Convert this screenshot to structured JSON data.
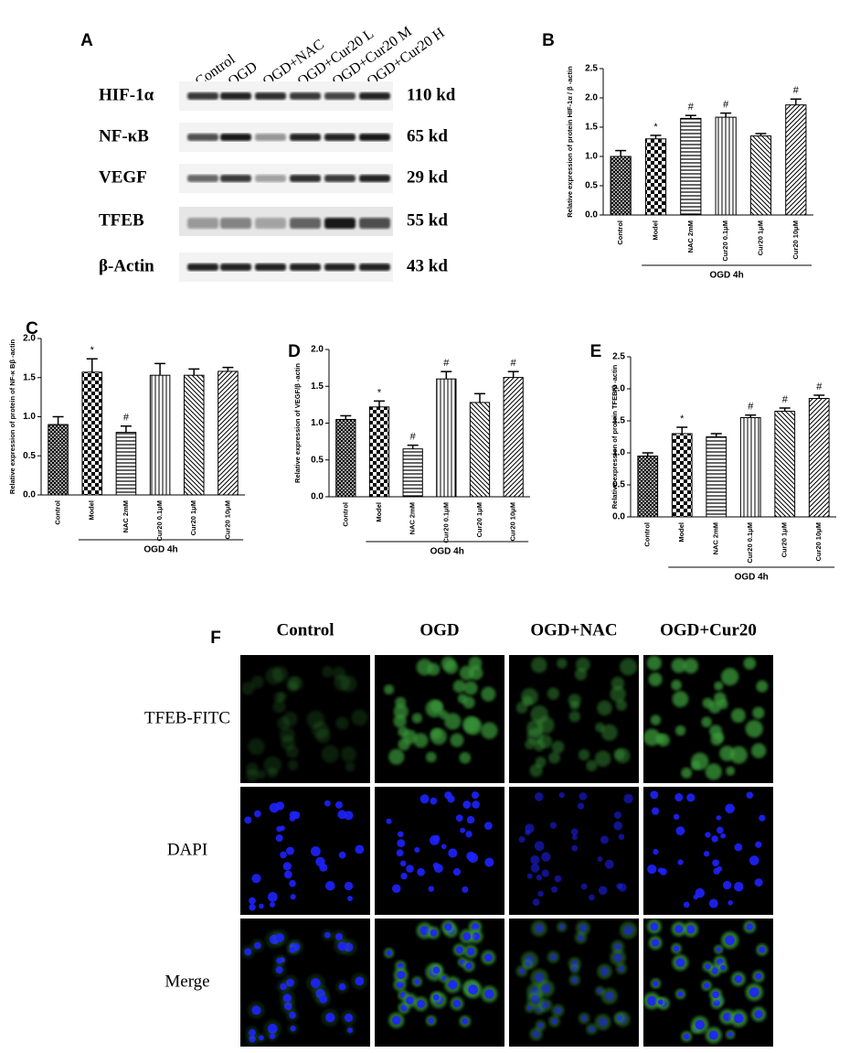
{
  "panel_a": {
    "panel": "A",
    "lanes": [
      "Control",
      "OGD",
      "OGD+NAC",
      "OGD+Cur20 L",
      "OGD+Cur20 M",
      "OGD+Cur20 H"
    ],
    "proteins": [
      "HIF-1α",
      "NF-κB",
      "VEGF",
      "TFEB",
      "β-Actin"
    ],
    "sizes": [
      "110 kd",
      "65 kd",
      "29 kd",
      "55 kd",
      "43 kd"
    ]
  },
  "chart_data": [
    {
      "type": "bar",
      "panel": "B",
      "ylabel": "Relative expression of protein HIF-1α / β -actin",
      "categories": [
        "Control",
        "Model",
        "NAC 2mM",
        "Cur20 0.1μM",
        "Cur20 1μM",
        "Cur20 10μM"
      ],
      "values": [
        1.0,
        1.3,
        1.65,
        1.67,
        1.35,
        1.88
      ],
      "errors": [
        0.1,
        0.06,
        0.05,
        0.07,
        0.04,
        0.1
      ],
      "annotations": [
        null,
        "*",
        "#",
        "#",
        null,
        "#"
      ],
      "group_label": "OGD 4h",
      "color": "#000000",
      "ylim": [
        0,
        2.5
      ],
      "yticks": [
        {
          "value": 0,
          "label": "0.0"
        },
        {
          "value": 0.5,
          "label": "0.5"
        },
        {
          "value": 1,
          "label": "1.0"
        },
        {
          "value": 1.5,
          "label": "1.5"
        },
        {
          "value": 2,
          "label": "2.0"
        },
        {
          "value": 2.5,
          "label": "2.5"
        }
      ]
    },
    {
      "type": "bar",
      "panel": "C",
      "ylabel": "Relative expression of protein of NF-κ Bβ -actin",
      "categories": [
        "Control",
        "Model",
        "NAC 2mM",
        "Cur20 0.1μM",
        "Cur20 1μM",
        "Cur20 10μM"
      ],
      "values": [
        0.9,
        1.57,
        0.8,
        1.53,
        1.53,
        1.58
      ],
      "errors": [
        0.1,
        0.17,
        0.08,
        0.15,
        0.08,
        0.05
      ],
      "annotations": [
        null,
        "*",
        "#",
        null,
        null,
        null
      ],
      "group_label": "OGD 4h",
      "color": "#000000",
      "ylim": [
        0,
        2
      ],
      "yticks": [
        {
          "value": 0,
          "label": "0.0"
        },
        {
          "value": 0.5,
          "label": "0.5"
        },
        {
          "value": 1,
          "label": "1.0"
        },
        {
          "value": 1.5,
          "label": "1.5"
        },
        {
          "value": 2,
          "label": "2.0"
        }
      ]
    },
    {
      "type": "bar",
      "panel": "D",
      "ylabel": "Relative expression of VEGF/β -actin",
      "categories": [
        "Control",
        "Model",
        "NAC 2mM",
        "Cur20 0.1μM",
        "Cur20 1μM",
        "Cur20 10μM"
      ],
      "values": [
        1.05,
        1.22,
        0.65,
        1.6,
        1.28,
        1.62
      ],
      "errors": [
        0.05,
        0.08,
        0.05,
        0.1,
        0.12,
        0.08
      ],
      "annotations": [
        null,
        "*",
        "#",
        "#",
        null,
        "#"
      ],
      "group_label": "OGD 4h",
      "color": "#000000",
      "ylim": [
        0,
        2
      ],
      "yticks": [
        {
          "value": 0,
          "label": "0.0"
        },
        {
          "value": 0.5,
          "label": "0.5"
        },
        {
          "value": 1,
          "label": "1.0"
        },
        {
          "value": 1.5,
          "label": "1.5"
        },
        {
          "value": 2,
          "label": "2.0"
        }
      ]
    },
    {
      "type": "bar",
      "panel": "E",
      "ylabel": "Relative expression of protein TFEB/β -actin",
      "categories": [
        "Control",
        "Model",
        "NAC 2mM",
        "Cur20 0.1μM",
        "Cur20 1μM",
        "Cur20 10μM"
      ],
      "values": [
        0.95,
        1.3,
        1.25,
        1.55,
        1.65,
        1.85
      ],
      "errors": [
        0.05,
        0.1,
        0.05,
        0.04,
        0.05,
        0.05
      ],
      "annotations": [
        null,
        "*",
        null,
        "#",
        "#",
        "#"
      ],
      "group_label": "OGD 4h",
      "color": "#000000",
      "ylim": [
        0,
        2.5
      ],
      "yticks": [
        {
          "value": 0,
          "label": "0.0"
        },
        {
          "value": 0.5,
          "label": "0.5"
        },
        {
          "value": 1,
          "label": "1.0"
        },
        {
          "value": 1.5,
          "label": "1.5"
        },
        {
          "value": 2,
          "label": "2.0"
        },
        {
          "value": 2.5,
          "label": "2.5"
        }
      ]
    }
  ],
  "panel_f": {
    "panel": "F",
    "columns": [
      "Control",
      "OGD",
      "OGD+NAC",
      "OGD+Cur20"
    ],
    "rows": [
      "TFEB-FITC",
      "DAPI",
      "Merge"
    ]
  }
}
